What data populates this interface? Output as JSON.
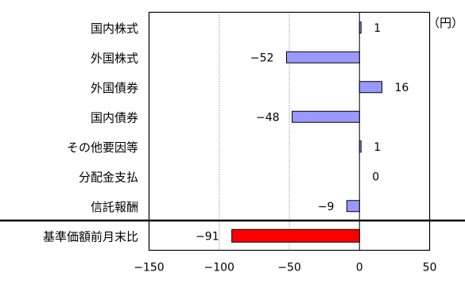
{
  "chart_data": {
    "type": "bar",
    "orientation": "horizontal",
    "unit": "（円）",
    "categories": [
      "国内株式",
      "外国株式",
      "外国債券",
      "国内債券",
      "その他要因等",
      "分配金支払",
      "信託報酬",
      "基準価額前月末比"
    ],
    "values": [
      1,
      -52,
      16,
      -48,
      1,
      0,
      -9,
      -91
    ],
    "value_labels": [
      "1",
      "−52",
      "16",
      "−48",
      "1",
      "0",
      "−9",
      "−91"
    ],
    "bar_colors": [
      "#9999ff",
      "#9999ff",
      "#9999ff",
      "#9999ff",
      "#9999ff",
      "#9999ff",
      "#9999ff",
      "#ff0000"
    ],
    "xlim": [
      -150,
      50
    ],
    "xticks": [
      "−150",
      "−100",
      "−50",
      "0",
      "50"
    ],
    "xtick_values": [
      -150,
      -100,
      -50,
      0,
      50
    ],
    "grid": "vertical dotted at -100 and -50",
    "separator_before_last": true
  }
}
